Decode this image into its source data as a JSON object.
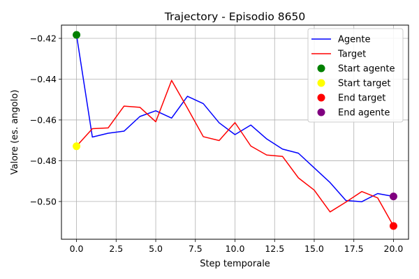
{
  "chart_data": {
    "type": "line",
    "title": "Trajectory - Episodio 8650",
    "xlabel": "Step temporale",
    "ylabel": "Valore (es. angolo)",
    "xlim": [
      -0.95,
      20.95
    ],
    "ylim": [
      -0.5185,
      -0.4135
    ],
    "xticks": [
      0,
      2.5,
      5,
      7.5,
      10,
      12.5,
      15,
      17.5,
      20
    ],
    "xtick_labels": [
      "0.0",
      "2.5",
      "5.0",
      "7.5",
      "10.0",
      "12.5",
      "15.0",
      "17.5",
      "20.0"
    ],
    "yticks": [
      -0.5,
      -0.48,
      -0.46,
      -0.44,
      -0.42
    ],
    "ytick_labels": [
      "−0.50",
      "−0.48",
      "−0.46",
      "−0.44",
      "−0.42"
    ],
    "grid": true,
    "legend_position": "top-right",
    "series": [
      {
        "name": "Agente",
        "kind": "line",
        "color": "#0000ff",
        "x": [
          0,
          1,
          2,
          3,
          4,
          5,
          6,
          7,
          8,
          9,
          10,
          11,
          12,
          13,
          14,
          15,
          16,
          17,
          18,
          19,
          20
        ],
        "y": [
          -0.4183,
          -0.4684,
          -0.4665,
          -0.4655,
          -0.4583,
          -0.4555,
          -0.4591,
          -0.4484,
          -0.452,
          -0.4614,
          -0.4672,
          -0.4625,
          -0.4693,
          -0.4743,
          -0.4763,
          -0.4835,
          -0.4907,
          -0.4995,
          -0.5001,
          -0.4961,
          -0.4975
        ]
      },
      {
        "name": "Target",
        "kind": "line",
        "color": "#ff0000",
        "x": [
          0,
          1,
          2,
          3,
          4,
          5,
          6,
          7,
          8,
          9,
          10,
          11,
          12,
          13,
          14,
          15,
          16,
          17,
          18,
          19,
          20
        ],
        "y": [
          -0.4729,
          -0.4643,
          -0.4639,
          -0.4532,
          -0.4538,
          -0.4609,
          -0.4406,
          -0.4542,
          -0.4682,
          -0.4701,
          -0.4613,
          -0.4728,
          -0.4772,
          -0.4779,
          -0.4884,
          -0.4944,
          -0.5051,
          -0.5003,
          -0.4951,
          -0.4982,
          -0.512
        ]
      },
      {
        "name": "Start agente",
        "kind": "point",
        "color": "#008000",
        "x": [
          0
        ],
        "y": [
          -0.4183
        ]
      },
      {
        "name": "Start target",
        "kind": "point",
        "color": "#ffff00",
        "x": [
          0
        ],
        "y": [
          -0.4729
        ]
      },
      {
        "name": "End target",
        "kind": "point",
        "color": "#ff0000",
        "x": [
          20
        ],
        "y": [
          -0.512
        ]
      },
      {
        "name": "End agente",
        "kind": "point",
        "color": "#800080",
        "x": [
          20
        ],
        "y": [
          -0.4975
        ]
      }
    ]
  }
}
